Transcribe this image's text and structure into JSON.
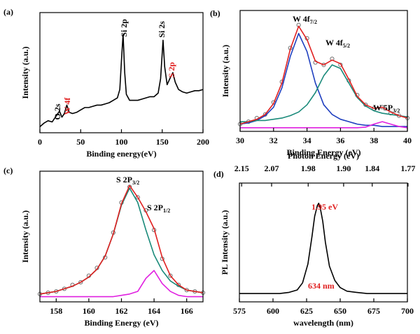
{
  "chart_data": [
    {
      "type": "line",
      "panel_label": "(a)",
      "xlabel": "Binding energy(eV)",
      "ylabel": "Intensity (a.u.)",
      "xlim": [
        0,
        200
      ],
      "xticks": [
        0,
        50,
        100,
        150,
        200
      ],
      "ylim": [
        0,
        100
      ],
      "x": [
        0,
        5,
        10,
        15,
        20,
        24,
        27,
        30,
        33,
        36,
        40,
        45,
        50,
        55,
        60,
        65,
        70,
        75,
        80,
        85,
        90,
        95,
        98,
        100,
        102,
        104,
        106,
        110,
        115,
        120,
        125,
        130,
        135,
        140,
        145,
        148,
        151,
        153,
        156,
        160,
        163,
        166,
        170,
        175,
        180,
        185,
        190,
        195,
        200
      ],
      "series": [
        {
          "color": "#000000",
          "style": "line",
          "values": [
            5,
            8,
            10,
            9,
            14,
            18,
            13,
            16,
            23,
            17,
            16,
            17,
            19,
            21,
            21,
            22,
            23,
            23,
            24,
            25,
            27,
            29,
            36,
            60,
            82,
            50,
            32,
            27,
            27,
            27,
            28,
            29,
            30,
            30,
            33,
            45,
            77,
            55,
            40,
            46,
            50,
            42,
            36,
            34,
            33,
            34,
            35,
            35,
            36
          ]
        }
      ],
      "annotations": [
        {
          "text": "O 2s",
          "color": "#000000"
        },
        {
          "text": "W 4f",
          "color": "#e02020"
        },
        {
          "text": "Si 2p",
          "color": "#000000"
        },
        {
          "text": "Si 2s",
          "color": "#000000"
        },
        {
          "text": "S 2p",
          "color": "#e02020"
        }
      ]
    },
    {
      "type": "line",
      "panel_label": "(b)",
      "xlabel": "Binding Energy (eV)",
      "ylabel": "Intensity (a.u.)",
      "xlim": [
        30,
        40
      ],
      "xticks": [
        30,
        32,
        34,
        36,
        38,
        40
      ],
      "ylim": [
        0,
        100
      ],
      "x": [
        30,
        30.5,
        31,
        31.5,
        32,
        32.5,
        33,
        33.5,
        34,
        34.5,
        35,
        35.5,
        36,
        36.5,
        37,
        37.5,
        38,
        38.5,
        39,
        39.5,
        40
      ],
      "series": [
        {
          "color": "#707070",
          "style": "circles",
          "values": [
            6,
            8,
            11,
            14,
            24,
            41,
            69,
            88,
            77,
            57,
            55,
            60,
            55,
            42,
            30,
            22,
            19,
            20,
            15,
            13,
            11
          ]
        },
        {
          "color": "#1f3fbf",
          "style": "line",
          "values": [
            6,
            7,
            9,
            13,
            20,
            36,
            62,
            81,
            66,
            40,
            22,
            14,
            10,
            8,
            6,
            5,
            5,
            4,
            4,
            4,
            4
          ]
        },
        {
          "color": "#1a8a7a",
          "style": "line",
          "values": [
            8,
            8,
            9,
            9,
            10,
            11,
            13,
            16,
            22,
            32,
            46,
            55,
            52,
            40,
            28,
            21,
            17,
            15,
            14,
            13,
            12
          ]
        },
        {
          "color": "#e020e0",
          "style": "line",
          "values": [
            3,
            3,
            3,
            3,
            3,
            3,
            3,
            3,
            3,
            3,
            3,
            3,
            3,
            3,
            3,
            3.5,
            6,
            8,
            6,
            4,
            3
          ]
        },
        {
          "color": "#e02020",
          "style": "line",
          "values": [
            6,
            8,
            10,
            14,
            23,
            40,
            68,
            87,
            76,
            58,
            55,
            59,
            56,
            43,
            29,
            22,
            19,
            20,
            16,
            13,
            11
          ]
        }
      ],
      "annotations": [
        {
          "text": "W 4f",
          "sub": "7/2",
          "color": "#000000"
        },
        {
          "text": "W 4f",
          "sub": "5/2",
          "color": "#000000"
        },
        {
          "text": "W 5P",
          "sub": "3/2",
          "color": "#000000"
        }
      ]
    },
    {
      "type": "line",
      "panel_label": "(c)",
      "xlabel": "Binding Energy (eV)",
      "ylabel": "Intensity (a.u.)",
      "xlim": [
        157,
        167
      ],
      "xticks": [
        158,
        160,
        162,
        164,
        166
      ],
      "ylim": [
        0,
        100
      ],
      "x": [
        157,
        157.5,
        158,
        158.5,
        159,
        159.5,
        160,
        160.5,
        161,
        161.5,
        162,
        162.5,
        163,
        163.5,
        164,
        164.5,
        165,
        165.5,
        166,
        166.5,
        167
      ],
      "series": [
        {
          "color": "#707070",
          "style": "circles",
          "values": [
            6,
            7,
            8,
            10,
            13,
            15,
            20,
            26,
            34,
            53,
            76,
            88,
            80,
            70,
            55,
            33,
            20,
            13,
            9,
            8,
            7
          ]
        },
        {
          "color": "#1a8a7a",
          "style": "line",
          "values": [
            6,
            7,
            8,
            10,
            12,
            15,
            19,
            25,
            35,
            52,
            74,
            87,
            76,
            55,
            36,
            24,
            16,
            12,
            9,
            8,
            7
          ]
        },
        {
          "color": "#e020e0",
          "style": "line",
          "values": [
            4,
            4,
            4,
            4,
            4,
            4,
            4,
            4,
            4,
            4,
            5,
            6,
            8,
            18,
            24,
            14,
            8,
            5,
            4,
            4,
            4
          ]
        },
        {
          "color": "#e02020",
          "style": "line",
          "values": [
            6,
            7,
            8,
            10,
            12,
            15,
            19,
            25,
            35,
            52,
            75,
            89,
            80,
            69,
            56,
            34,
            20,
            13,
            9,
            8,
            7
          ]
        }
      ],
      "annotations": [
        {
          "text": "S 2P",
          "sub": "3/2",
          "color": "#000000"
        },
        {
          "text": "S 2P",
          "sub": "1/2",
          "color": "#000000"
        }
      ]
    },
    {
      "type": "line",
      "panel_label": "(d)",
      "xlabel": "wavelength (nm)",
      "ylabel": "PL Intensity (a.u.)",
      "x2label": "Photon Energy (eV)",
      "xlim": [
        575,
        700
      ],
      "xticks": [
        575,
        600,
        625,
        650,
        675,
        700
      ],
      "ylim": [
        0,
        100
      ],
      "x2ticks": [
        2.15,
        2.07,
        1.98,
        {
          "value": 1.9,
          "label": "1.90"
        },
        1.84,
        1.77
      ],
      "x": [
        575,
        585,
        595,
        605,
        612,
        618,
        622,
        626,
        629,
        631,
        633,
        634,
        635,
        637,
        639,
        642,
        646,
        650,
        655,
        662,
        670,
        680,
        690,
        700
      ],
      "series": [
        {
          "color": "#000000",
          "style": "line",
          "values": [
            7,
            7,
            7,
            7,
            8,
            10,
            16,
            32,
            55,
            72,
            81,
            83,
            80,
            68,
            50,
            30,
            18,
            12,
            9,
            8,
            7,
            7,
            7,
            7
          ]
        }
      ],
      "annotations": [
        {
          "text": "1.95 eV",
          "color": "#e02020"
        },
        {
          "text": "634 nm",
          "color": "#e02020"
        }
      ]
    }
  ]
}
